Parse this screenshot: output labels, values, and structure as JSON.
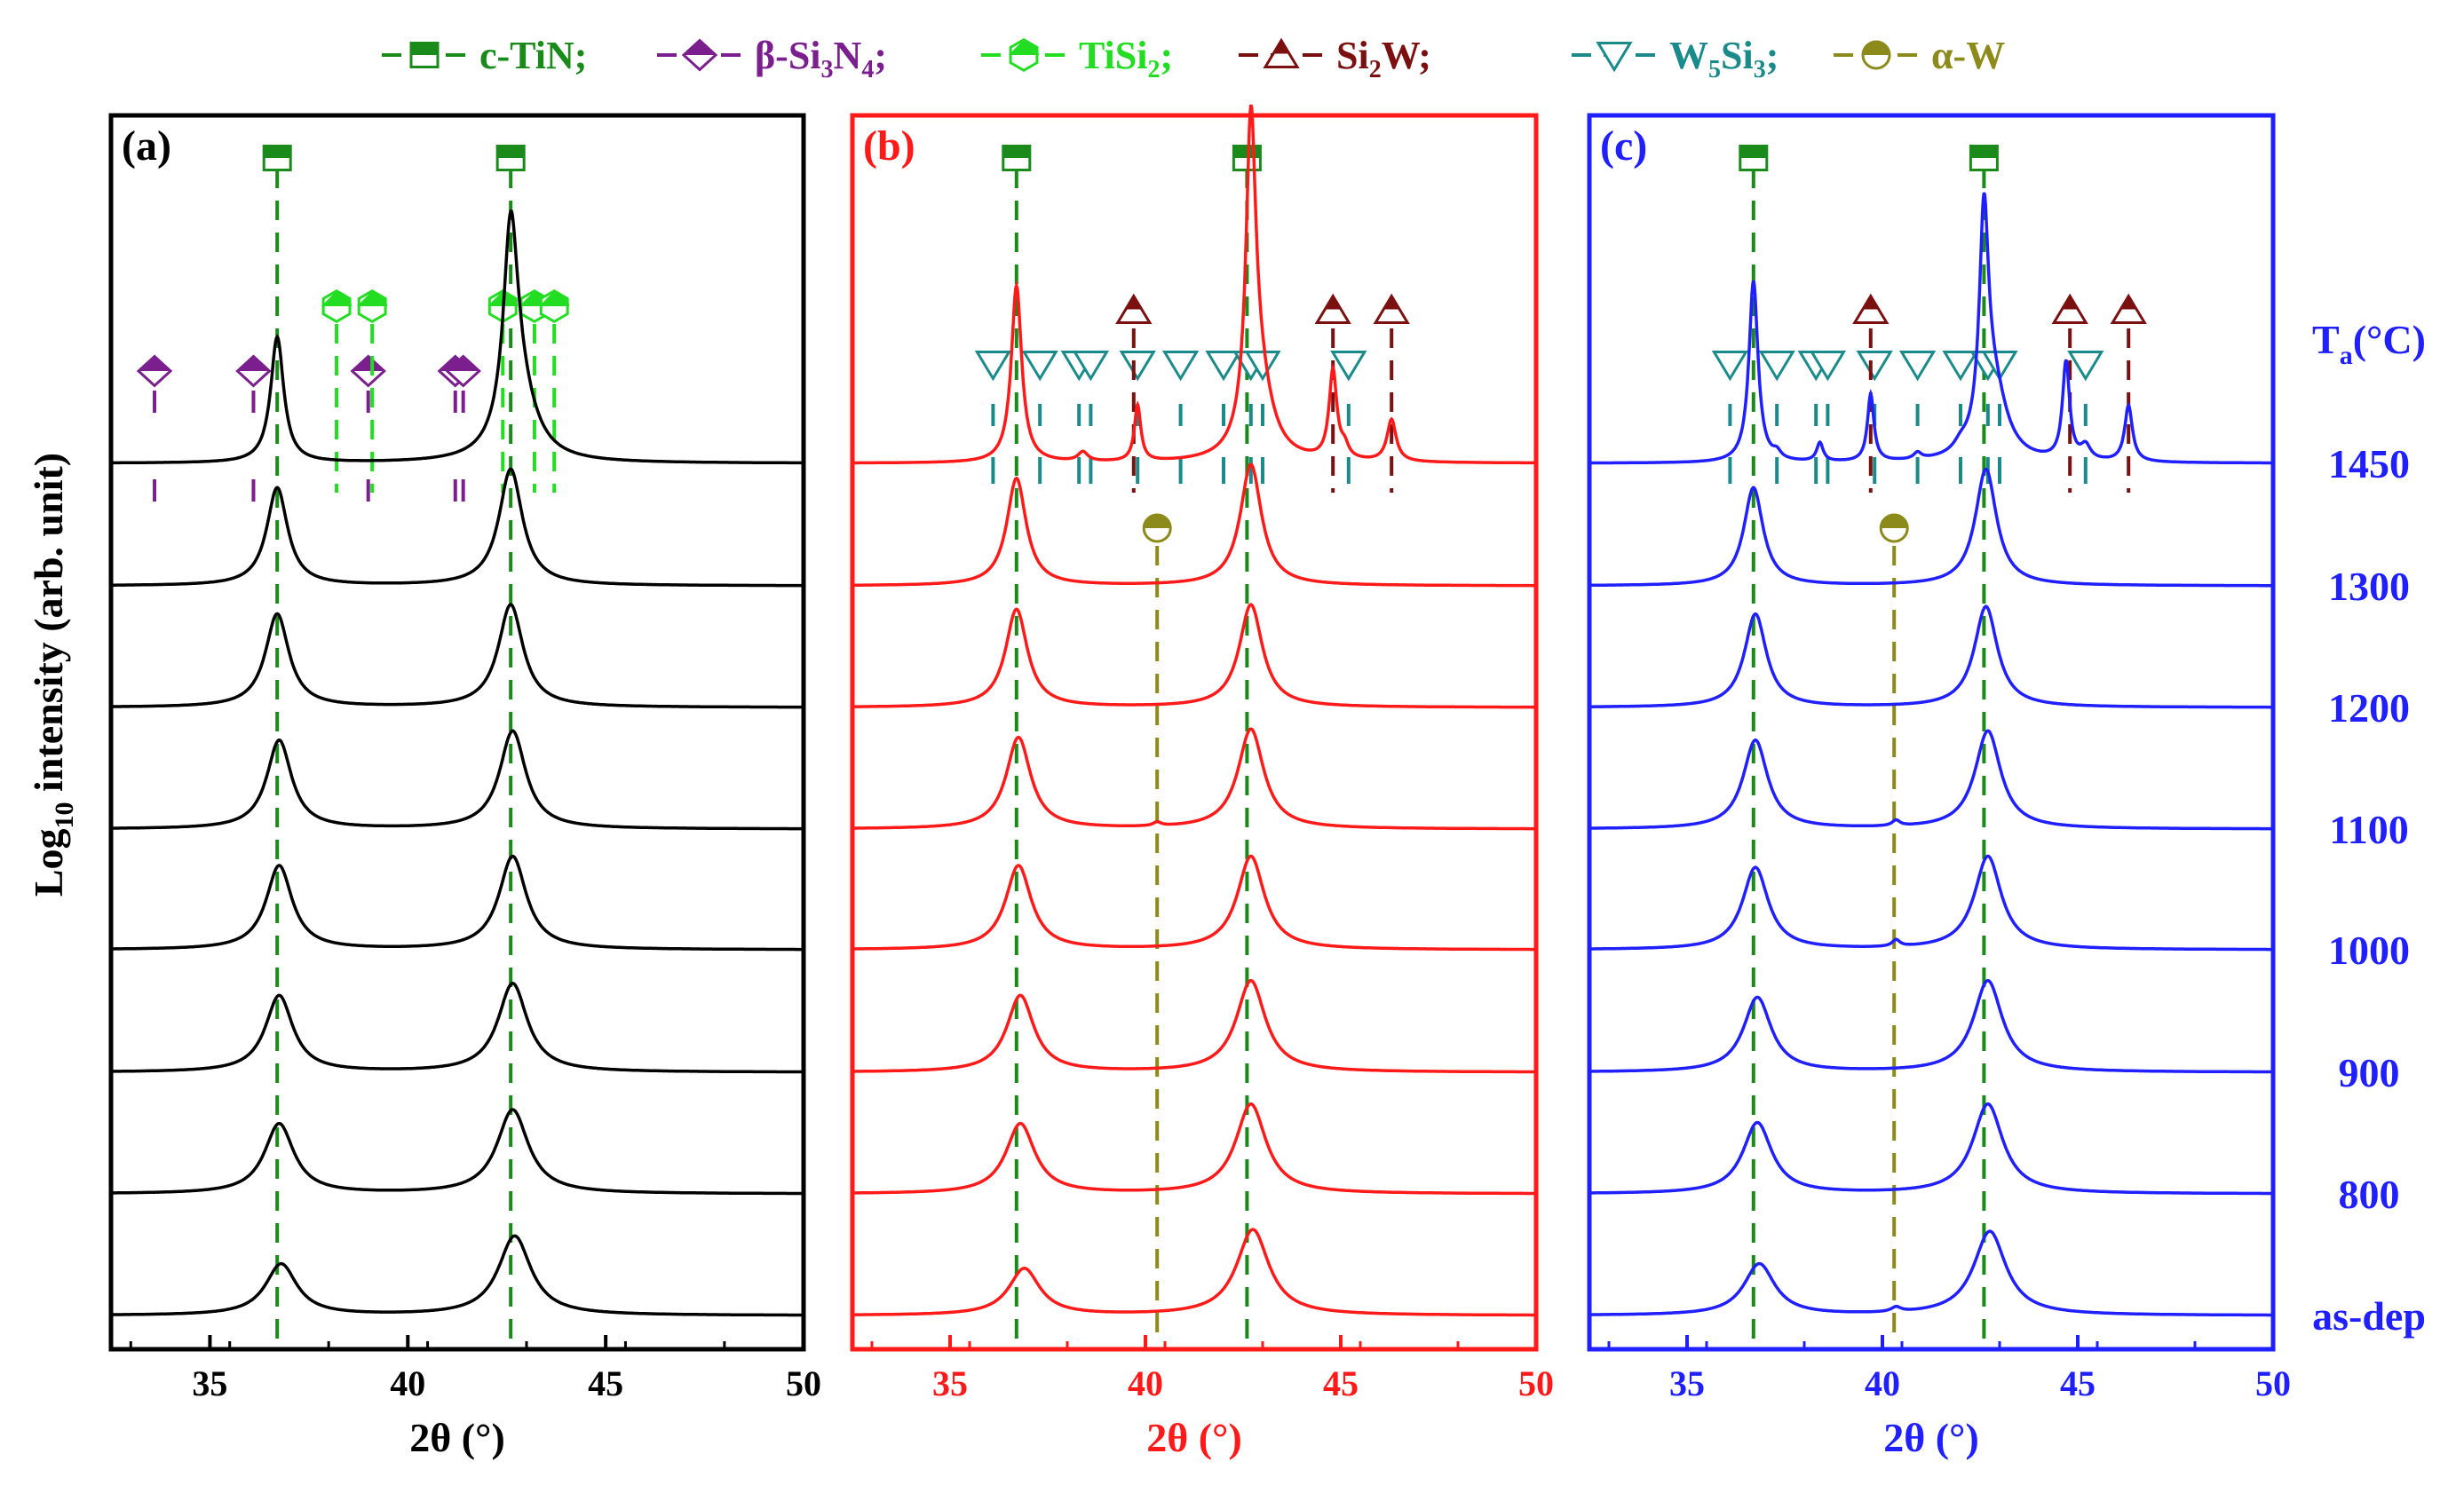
{
  "figure": {
    "ylabel_main": "Log",
    "ylabel_sub": "10",
    "ylabel_rest": " intensity (arb. unit)",
    "temp_header_main": "T",
    "temp_header_sub": "a",
    "temp_header_rest": "(°C)",
    "temperatures": [
      "1450",
      "1300",
      "1200",
      "1100",
      "1000",
      "900",
      "800",
      "as-dep"
    ],
    "temp_color": "#1f1fff"
  },
  "legend": [
    {
      "id": "tin",
      "marker": "half-square",
      "color": "#1a8a1a",
      "label": [
        [
          "c-TiN;",
          "n"
        ]
      ]
    },
    {
      "id": "si3n4",
      "marker": "half-diamond",
      "color": "#7b1f8f",
      "label": [
        [
          "β-Si",
          "n"
        ],
        [
          "3",
          "s"
        ],
        [
          "N",
          "n"
        ],
        [
          "4",
          "s"
        ],
        [
          ";",
          "n"
        ]
      ]
    },
    {
      "id": "tisi2",
      "marker": "half-hexagon",
      "color": "#22dd22",
      "label": [
        [
          "TiSi",
          "n"
        ],
        [
          "2",
          "s"
        ],
        [
          ";",
          "n"
        ]
      ]
    },
    {
      "id": "si2w",
      "marker": "half-triangle-up",
      "color": "#7a1010",
      "label": [
        [
          "Si",
          "n"
        ],
        [
          "2",
          "s"
        ],
        [
          "W;",
          "n"
        ]
      ]
    },
    {
      "id": "w5si3",
      "marker": "triangle-down",
      "color": "#1a8a8a",
      "label": [
        [
          "W",
          "n"
        ],
        [
          "5",
          "s"
        ],
        [
          "Si",
          "n"
        ],
        [
          "3",
          "s"
        ],
        [
          ";",
          "n"
        ]
      ]
    },
    {
      "id": "alphaw",
      "marker": "half-circle",
      "color": "#8c8a1a",
      "label": [
        [
          "α-W",
          "n"
        ]
      ]
    }
  ],
  "chart_data": [
    {
      "type": "line",
      "panel": "(a)",
      "color": "#000000",
      "xlabel": "2θ (°)",
      "xlim": [
        32.5,
        50
      ],
      "xticks": [
        35,
        40,
        45,
        50
      ],
      "series": [
        {
          "temperature": "1450",
          "peaks": [
            {
              "x": 36.7,
              "h": 1.35,
              "w": 0.2
            },
            {
              "x": 42.6,
              "h": 2.1,
              "w": 0.22
            },
            {
              "x": 42.8,
              "h": 0.7,
              "w": 0.5
            }
          ]
        },
        {
          "temperature": "1300",
          "peaks": [
            {
              "x": 36.7,
              "h": 1.05,
              "w": 0.32
            },
            {
              "x": 42.6,
              "h": 1.25,
              "w": 0.36
            }
          ]
        },
        {
          "temperature": "1200",
          "peaks": [
            {
              "x": 36.7,
              "h": 1.0,
              "w": 0.36
            },
            {
              "x": 42.6,
              "h": 1.1,
              "w": 0.38
            }
          ]
        },
        {
          "temperature": "1100",
          "peaks": [
            {
              "x": 36.75,
              "h": 0.95,
              "w": 0.38
            },
            {
              "x": 42.65,
              "h": 1.05,
              "w": 0.4
            }
          ]
        },
        {
          "temperature": "1000",
          "peaks": [
            {
              "x": 36.75,
              "h": 0.9,
              "w": 0.4
            },
            {
              "x": 42.65,
              "h": 1.0,
              "w": 0.42
            }
          ]
        },
        {
          "temperature": "900",
          "peaks": [
            {
              "x": 36.75,
              "h": 0.82,
              "w": 0.42
            },
            {
              "x": 42.65,
              "h": 0.95,
              "w": 0.45
            }
          ]
        },
        {
          "temperature": "800",
          "peaks": [
            {
              "x": 36.75,
              "h": 0.75,
              "w": 0.45
            },
            {
              "x": 42.65,
              "h": 0.9,
              "w": 0.48
            }
          ]
        },
        {
          "temperature": "as-dep",
          "peaks": [
            {
              "x": 36.8,
              "h": 0.55,
              "w": 0.48
            },
            {
              "x": 42.7,
              "h": 0.85,
              "w": 0.5
            }
          ]
        }
      ],
      "references": [
        {
          "phase": "tin",
          "x": [
            36.7,
            42.6
          ]
        },
        {
          "phase": "si3n4",
          "x": [
            33.6,
            36.1,
            39.0,
            41.2,
            41.4
          ]
        },
        {
          "phase": "tisi2",
          "x": [
            38.2,
            39.1,
            42.4,
            43.2,
            43.7
          ]
        }
      ]
    },
    {
      "type": "line",
      "panel": "(b)",
      "color": "#ff1a1a",
      "xlabel": "2θ (°)",
      "xlim": [
        32.5,
        50
      ],
      "xticks": [
        35,
        40,
        45,
        50
      ],
      "series": [
        {
          "temperature": "1450",
          "peaks": [
            {
              "x": 36.7,
              "h": 1.9,
              "w": 0.16
            },
            {
              "x": 42.7,
              "h": 3.2,
              "w": 0.15
            },
            {
              "x": 42.9,
              "h": 0.8,
              "w": 0.4
            },
            {
              "x": 39.8,
              "h": 0.6,
              "w": 0.1
            },
            {
              "x": 44.8,
              "h": 0.95,
              "w": 0.12
            },
            {
              "x": 46.3,
              "h": 0.45,
              "w": 0.14
            },
            {
              "x": 38.4,
              "h": 0.1,
              "w": 0.15
            },
            {
              "x": 45.1,
              "h": 0.12,
              "w": 0.12
            }
          ]
        },
        {
          "temperature": "1300",
          "peaks": [
            {
              "x": 36.7,
              "h": 1.15,
              "w": 0.3
            },
            {
              "x": 42.7,
              "h": 1.3,
              "w": 0.33
            }
          ]
        },
        {
          "temperature": "1200",
          "peaks": [
            {
              "x": 36.7,
              "h": 1.05,
              "w": 0.34
            },
            {
              "x": 42.7,
              "h": 1.1,
              "w": 0.36
            }
          ]
        },
        {
          "temperature": "1100",
          "peaks": [
            {
              "x": 36.75,
              "h": 0.98,
              "w": 0.38
            },
            {
              "x": 42.7,
              "h": 1.07,
              "w": 0.4
            },
            {
              "x": 40.3,
              "h": 0.04,
              "w": 0.12
            }
          ]
        },
        {
          "temperature": "1000",
          "peaks": [
            {
              "x": 36.75,
              "h": 0.9,
              "w": 0.4
            },
            {
              "x": 42.7,
              "h": 1.0,
              "w": 0.42
            }
          ]
        },
        {
          "temperature": "900",
          "peaks": [
            {
              "x": 36.8,
              "h": 0.82,
              "w": 0.42
            },
            {
              "x": 42.7,
              "h": 0.98,
              "w": 0.45
            }
          ]
        },
        {
          "temperature": "800",
          "peaks": [
            {
              "x": 36.8,
              "h": 0.75,
              "w": 0.45
            },
            {
              "x": 42.7,
              "h": 0.96,
              "w": 0.47
            }
          ]
        },
        {
          "temperature": "as-dep",
          "peaks": [
            {
              "x": 36.9,
              "h": 0.5,
              "w": 0.48
            },
            {
              "x": 42.75,
              "h": 0.92,
              "w": 0.5
            }
          ]
        }
      ],
      "references": [
        {
          "phase": "tin",
          "x": [
            36.7,
            42.6
          ]
        },
        {
          "phase": "w5si3",
          "x": [
            36.1,
            37.3,
            38.3,
            38.6,
            39.8,
            40.9,
            42.0,
            42.7,
            43.0,
            45.2
          ]
        },
        {
          "phase": "si2w",
          "x": [
            39.7,
            44.8,
            46.3
          ]
        },
        {
          "phase": "alphaw",
          "x": [
            40.3
          ]
        }
      ]
    },
    {
      "type": "line",
      "panel": "(c)",
      "color": "#1f1fff",
      "xlabel": "2θ (°)",
      "xlim": [
        32.5,
        50
      ],
      "xticks": [
        35,
        40,
        45,
        50
      ],
      "series": [
        {
          "temperature": "1450",
          "peaks": [
            {
              "x": 36.7,
              "h": 1.95,
              "w": 0.14
            },
            {
              "x": 42.6,
              "h": 2.35,
              "w": 0.14
            },
            {
              "x": 42.85,
              "h": 0.75,
              "w": 0.4
            },
            {
              "x": 39.7,
              "h": 0.72,
              "w": 0.1
            },
            {
              "x": 44.7,
              "h": 1.05,
              "w": 0.11
            },
            {
              "x": 46.3,
              "h": 0.6,
              "w": 0.12
            },
            {
              "x": 38.4,
              "h": 0.2,
              "w": 0.1
            },
            {
              "x": 37.3,
              "h": 0.07,
              "w": 0.12
            },
            {
              "x": 40.9,
              "h": 0.07,
              "w": 0.12
            },
            {
              "x": 45.2,
              "h": 0.15,
              "w": 0.15
            },
            {
              "x": 42.0,
              "h": 0.08,
              "w": 0.2
            }
          ]
        },
        {
          "temperature": "1300",
          "peaks": [
            {
              "x": 36.7,
              "h": 1.05,
              "w": 0.3
            },
            {
              "x": 42.65,
              "h": 1.25,
              "w": 0.33
            }
          ]
        },
        {
          "temperature": "1200",
          "peaks": [
            {
              "x": 36.75,
              "h": 1.0,
              "w": 0.34
            },
            {
              "x": 42.65,
              "h": 1.08,
              "w": 0.36
            }
          ]
        },
        {
          "temperature": "1100",
          "peaks": [
            {
              "x": 36.75,
              "h": 0.95,
              "w": 0.38
            },
            {
              "x": 42.7,
              "h": 1.05,
              "w": 0.4
            },
            {
              "x": 40.35,
              "h": 0.06,
              "w": 0.12
            }
          ]
        },
        {
          "temperature": "1000",
          "peaks": [
            {
              "x": 36.75,
              "h": 0.88,
              "w": 0.4
            },
            {
              "x": 42.7,
              "h": 1.0,
              "w": 0.42
            },
            {
              "x": 40.35,
              "h": 0.07,
              "w": 0.12
            }
          ]
        },
        {
          "temperature": "900",
          "peaks": [
            {
              "x": 36.8,
              "h": 0.8,
              "w": 0.43
            },
            {
              "x": 42.7,
              "h": 0.98,
              "w": 0.45
            }
          ]
        },
        {
          "temperature": "800",
          "peaks": [
            {
              "x": 36.8,
              "h": 0.76,
              "w": 0.45
            },
            {
              "x": 42.7,
              "h": 0.96,
              "w": 0.47
            }
          ]
        },
        {
          "temperature": "as-dep",
          "peaks": [
            {
              "x": 36.85,
              "h": 0.55,
              "w": 0.48
            },
            {
              "x": 42.75,
              "h": 0.9,
              "w": 0.5
            },
            {
              "x": 40.35,
              "h": 0.05,
              "w": 0.15
            }
          ]
        }
      ],
      "references": [
        {
          "phase": "tin",
          "x": [
            36.7,
            42.6
          ]
        },
        {
          "phase": "w5si3",
          "x": [
            36.1,
            37.3,
            38.3,
            38.6,
            39.8,
            40.9,
            42.0,
            42.7,
            43.0,
            45.2
          ]
        },
        {
          "phase": "si2w",
          "x": [
            39.7,
            44.8,
            46.3
          ]
        },
        {
          "phase": "alphaw",
          "x": [
            40.3
          ]
        }
      ]
    }
  ]
}
